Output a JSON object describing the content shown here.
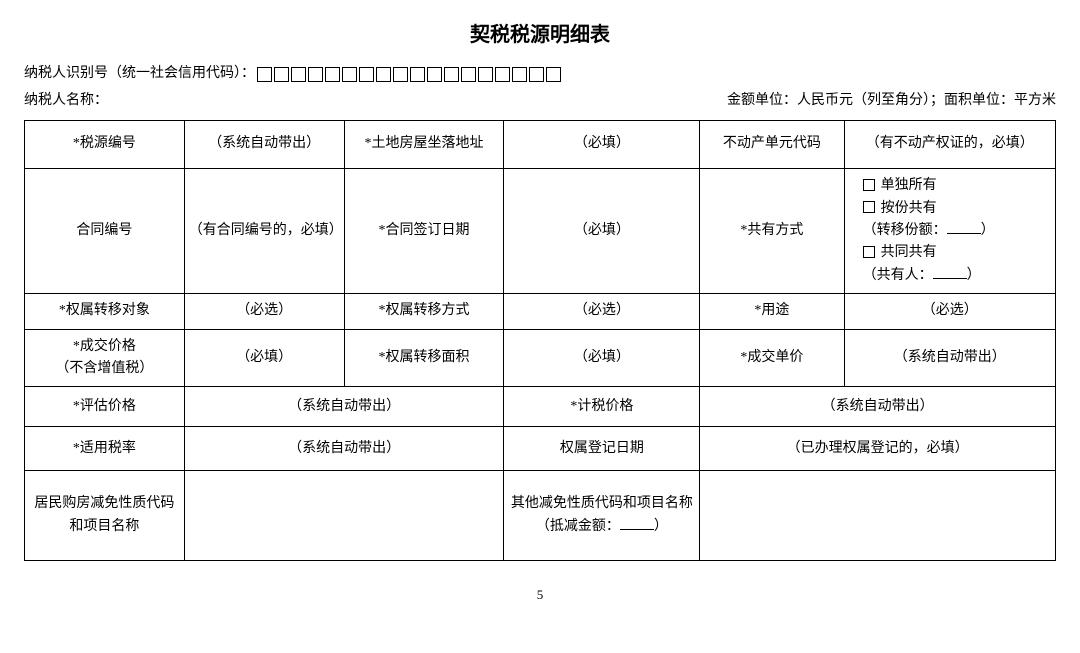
{
  "title": "契税税源明细表",
  "header": {
    "taxpayer_id_label": "纳税人识别号（统一社会信用代码）：",
    "id_box_count": 18,
    "taxpayer_name_label": "纳税人名称：",
    "unit_label": "金额单位：人民币元（列至角分）；面积单位：平方米"
  },
  "rows": {
    "r1": {
      "c1": "*税源编号",
      "c2": "（系统自动带出）",
      "c3": "*土地房屋坐落地址",
      "c4": "（必填）",
      "c5": "不动产单元代码",
      "c6": "（有不动产权证的，必填）"
    },
    "r2": {
      "c1": "合同编号",
      "c2": "（有合同编号的，必填）",
      "c3": "*合同签订日期",
      "c4": "（必填）",
      "c5": "*共有方式",
      "opt1": "单独所有",
      "opt2": "按份共有",
      "opt2_paren_a": "（转移份额：",
      "opt2_paren_b": "）",
      "opt3": "共同共有",
      "opt3_paren_a": "（共有人：",
      "opt3_paren_b": "）"
    },
    "r3": {
      "c1": "*权属转移对象",
      "c2": "（必选）",
      "c3": "*权属转移方式",
      "c4": "（必选）",
      "c5": "*用途",
      "c6": "（必选）"
    },
    "r4": {
      "c1a": "*成交价格",
      "c1b": "（不含增值税）",
      "c2": "（必填）",
      "c3": "*权属转移面积",
      "c4": "（必填）",
      "c5": "*成交单价",
      "c6": "（系统自动带出）"
    },
    "r5": {
      "c1": "*评估价格",
      "c2": "（系统自动带出）",
      "c3": "*计税价格",
      "c4": "（系统自动带出）"
    },
    "r6": {
      "c1": "*适用税率",
      "c2": "（系统自动带出）",
      "c3": "权属登记日期",
      "c4": "（已办理权属登记的，必填）"
    },
    "r7": {
      "c1": "居民购房减免性质代码和项目名称",
      "c3a": "其他减免性质代码和项目名称",
      "c3b_a": "（抵减金额：",
      "c3b_b": "）"
    }
  },
  "page_number": "5"
}
